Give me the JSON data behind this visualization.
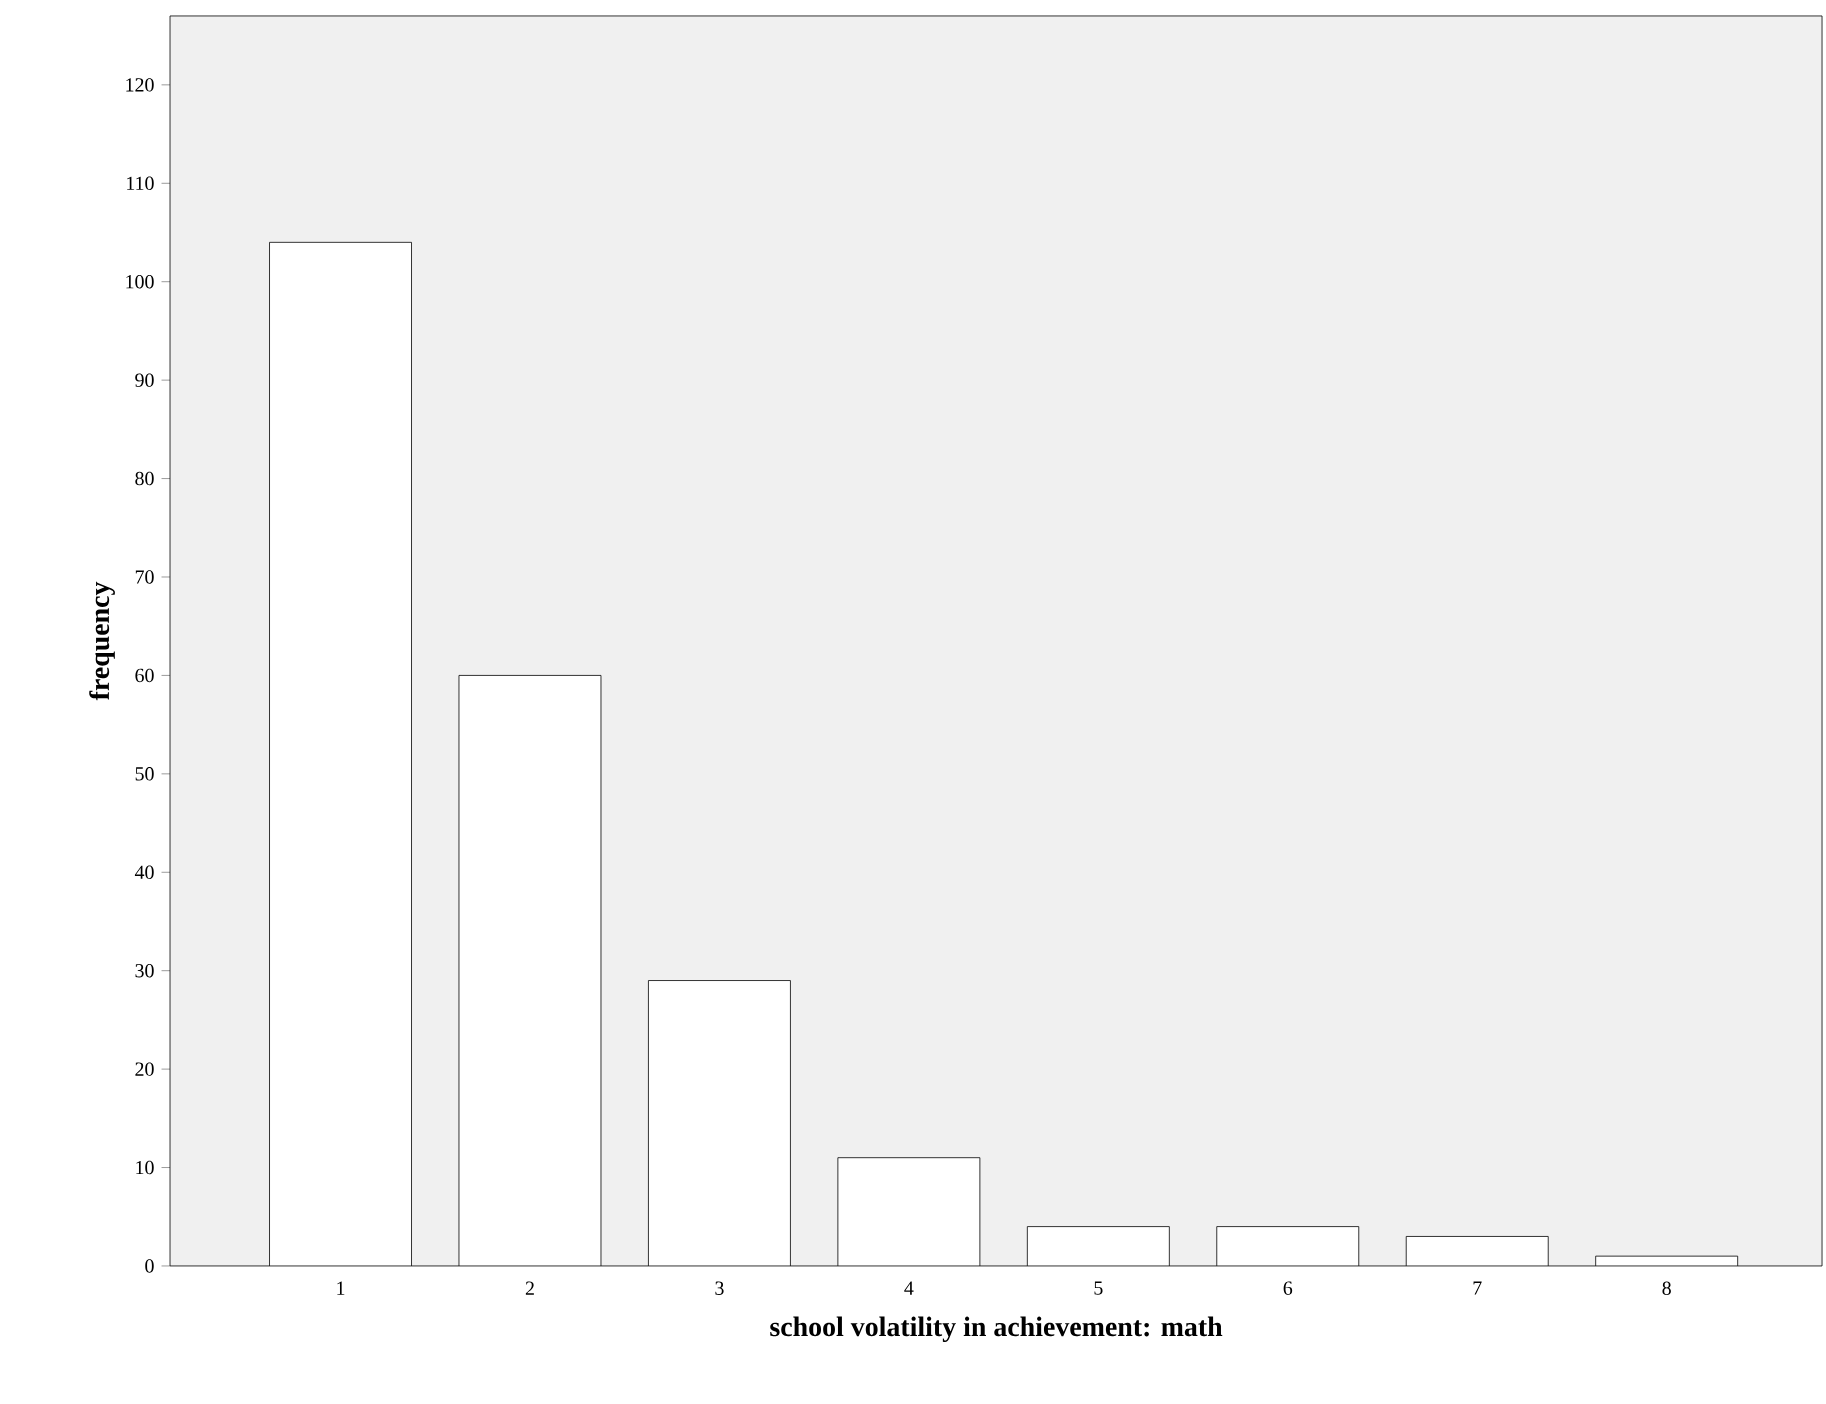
{
  "chart_data": {
    "type": "bar",
    "xlabel": "school volatility in achievement:  math",
    "ylabel": "frequency",
    "categories": [
      "1",
      "2",
      "3",
      "4",
      "5",
      "6",
      "7",
      "8"
    ],
    "values": [
      104,
      60,
      29,
      11,
      4,
      4,
      3,
      1
    ],
    "color": "#ffffff",
    "ylim": [
      0,
      127
    ],
    "yticks": [
      0,
      10,
      20,
      30,
      40,
      50,
      60,
      70,
      80,
      90,
      100,
      110,
      120
    ],
    "grid": false
  }
}
